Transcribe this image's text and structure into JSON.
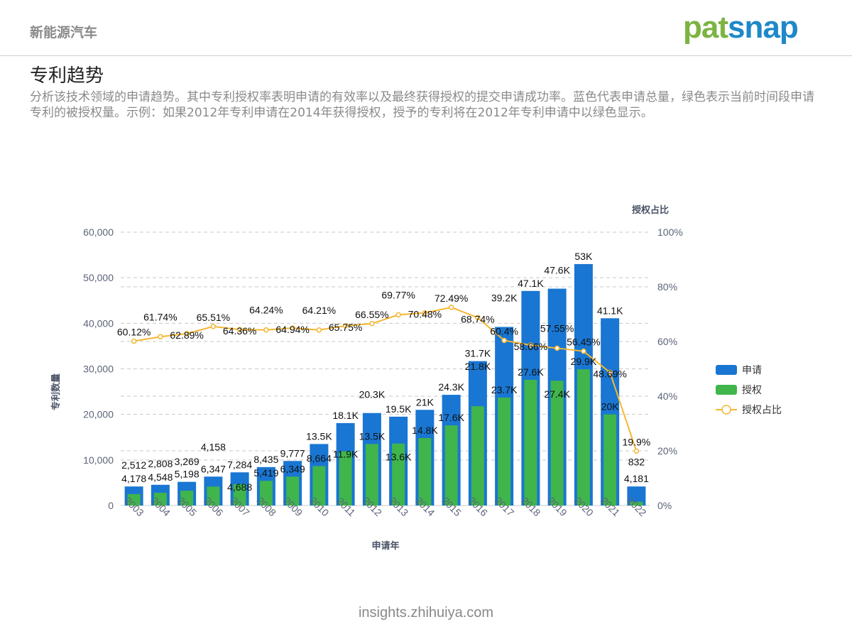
{
  "header": {
    "topic": "新能源汽车",
    "logo_left": "pat",
    "logo_right": "snap",
    "logo_text": "patsnap"
  },
  "title": "专利趋势",
  "description": "分析该技术领域的申请趋势。其中专利授权率表明申请的有效率以及最终获得授权的提交申请成功率。蓝色代表申请总量，绿色表示当前时间段申请专利的被授权量。示例：如果2012年专利申请在2014年获得授权，授予的专利将在2012年专利申请中以绿色显示。",
  "footer": "insights.zhihuiya.com",
  "colors": {
    "applications": "#1976d2",
    "grants": "#3fb54b",
    "rate": "#f5b731"
  },
  "chart_data": {
    "type": "bar",
    "xlabel": "申请年",
    "ylabel": "专利数量",
    "y2label": "授权占比",
    "ylim": [
      0,
      60000
    ],
    "y2lim": [
      0,
      100
    ],
    "yticks": [
      "0",
      "10,000",
      "20,000",
      "30,000",
      "40,000",
      "50,000",
      "60,000"
    ],
    "y2ticks": [
      "0%",
      "20%",
      "40%",
      "60%",
      "80%",
      "100%"
    ],
    "categories": [
      "2003",
      "2004",
      "2005",
      "2006",
      "2007",
      "2008",
      "2009",
      "2010",
      "2011",
      "2012",
      "2013",
      "2014",
      "2015",
      "2016",
      "2017",
      "2018",
      "2019",
      "2020",
      "2021",
      "2022"
    ],
    "series": [
      {
        "name": "申请",
        "type": "bar",
        "values": [
          4178,
          4548,
          5198,
          6347,
          7284,
          8435,
          9777,
          13500,
          18100,
          20300,
          19500,
          21000,
          24300,
          31700,
          39200,
          47100,
          47600,
          53000,
          41100,
          4181
        ],
        "labels": [
          "4,178",
          "4,548",
          "5,198",
          "6,347",
          "7,284",
          "8,435",
          "9,777",
          "13.5K",
          "18.1K",
          "20.3K",
          "19.5K",
          "21K",
          "24.3K",
          "31.7K",
          "39.2K",
          "47.1K",
          "47.6K",
          "53K",
          "41.1K",
          "4,181"
        ]
      },
      {
        "name": "授权",
        "type": "bar",
        "values": [
          2512,
          2808,
          3269,
          4158,
          4688,
          5419,
          6349,
          8664,
          11900,
          13500,
          13600,
          14800,
          17600,
          21800,
          23700,
          27600,
          27400,
          29900,
          20000,
          832
        ],
        "labels": [
          "2,512",
          "2,808",
          "3,269",
          "4,158",
          "4,688",
          "5,419",
          "6,349",
          "8,664",
          "11.9K",
          "13.5K",
          "13.6K",
          "14.8K",
          "17.6K",
          "21.8K",
          "23.7K",
          "27.6K",
          "27.4K",
          "29.9K",
          "20K",
          "832"
        ]
      },
      {
        "name": "授权占比",
        "type": "line",
        "values": [
          60.12,
          61.74,
          62.89,
          65.51,
          64.36,
          64.24,
          64.94,
          64.21,
          65.75,
          66.55,
          69.77,
          70.48,
          72.49,
          68.74,
          60.4,
          58.66,
          57.55,
          56.45,
          48.69,
          19.9
        ],
        "labels": [
          "60.12%",
          "61.74%",
          "62.89%",
          "65.51%",
          "64.36%",
          "64.24%",
          "64.94%",
          "64.21%",
          "65.75%",
          "66.55%",
          "69.77%",
          "70.48%",
          "72.49%",
          "68.74%",
          "60.4%",
          "58.66%",
          "57.55%",
          "56.45%",
          "48.69%",
          "19.9%"
        ]
      }
    ],
    "legend": "right"
  }
}
